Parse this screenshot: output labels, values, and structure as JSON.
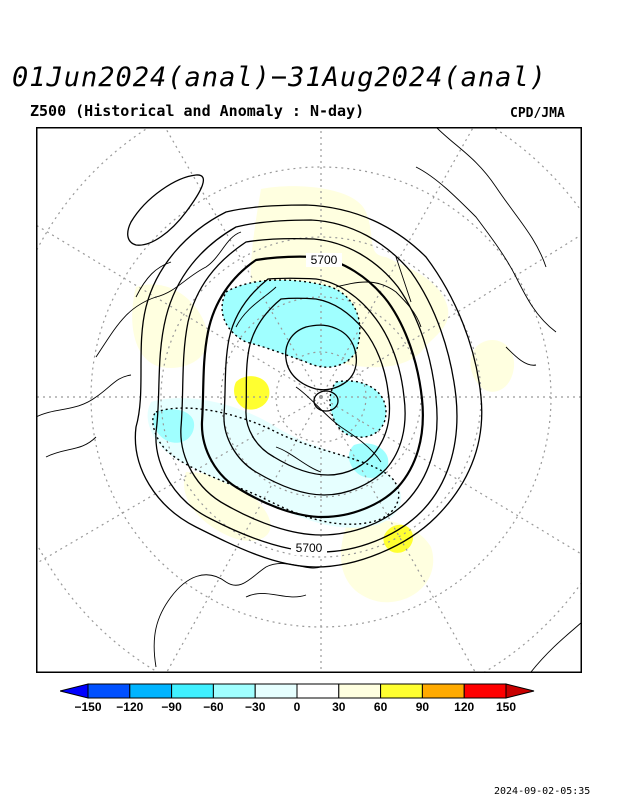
{
  "title": "01Jun2024(anal)−31Aug2024(anal)",
  "subtitle": "Z500 (Historical and Anomaly : N-day)",
  "source": "CPD/JMA",
  "contour_label": "5700",
  "contour_label_2": "5700",
  "colorbar": {
    "ticks": [
      "−150",
      "−120",
      "−90",
      "−60",
      "−30",
      "0",
      "30",
      "60",
      "90",
      "120",
      "150"
    ],
    "colors": [
      "#0000ff",
      "#0050ff",
      "#00b4ff",
      "#40f0ff",
      "#a0ffff",
      "#e6ffff",
      "#ffffff",
      "#ffffe0",
      "#ffff30",
      "#ffaa00",
      "#ff0000",
      "#c80000"
    ]
  },
  "timestamp": "2024-09-02-05:35",
  "colors": {
    "negative_fill": "#a0ffff",
    "weak_negative_fill": "#e6ffff",
    "positive_fill": "#ffffe0",
    "strong_positive_fill": "#ffff30"
  }
}
